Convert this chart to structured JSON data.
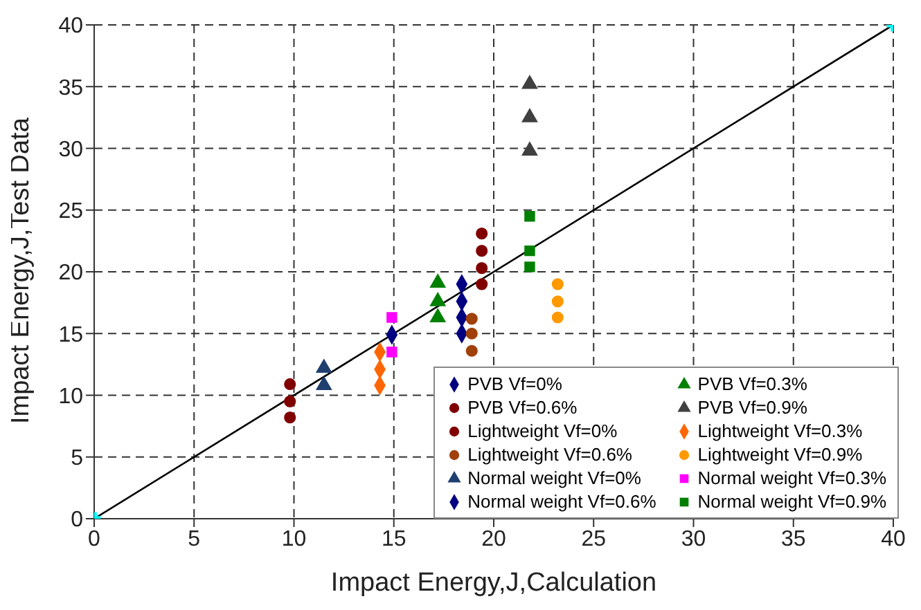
{
  "chart_data": {
    "type": "scatter",
    "xlabel": "Impact Energy,J,Calculation",
    "ylabel": "Impact Energy,J,Test Data",
    "xlim": [
      0,
      40
    ],
    "ylim": [
      0,
      40
    ],
    "xticks": [
      0,
      5,
      10,
      15,
      20,
      25,
      30,
      35,
      40
    ],
    "yticks": [
      0,
      5,
      10,
      15,
      20,
      25,
      30,
      35,
      40
    ],
    "grid": true,
    "legend": "bottom right",
    "series": [
      {
        "type": "line",
        "color": "#000000",
        "marker": "none",
        "x": [
          0,
          40
        ],
        "values": [
          0,
          40
        ]
      },
      {
        "color": "#00ffff",
        "marker": "cross",
        "x": [
          0,
          40
        ],
        "values": [
          0,
          40
        ]
      },
      {
        "name": "PVB Vf=0%",
        "color": "#000080",
        "marker": "diamond",
        "x": [
          18.4,
          18.4,
          18.4,
          18.4
        ],
        "values": [
          19.0,
          17.6,
          16.3,
          15.0
        ]
      },
      {
        "name": "PVB Vf=0.3%",
        "color": "#008000",
        "marker": "triangle",
        "x": [
          17.2,
          17.2,
          17.2
        ],
        "values": [
          19.1,
          17.6,
          16.3
        ]
      },
      {
        "name": "PVB Vf=0.6%",
        "color": "#800000",
        "marker": "circle",
        "x": [
          19.4,
          19.4,
          19.4,
          19.4
        ],
        "values": [
          23.1,
          21.7,
          20.3,
          19.0
        ]
      },
      {
        "name": "PVB Vf=0.9%",
        "color": "#404040",
        "marker": "triangle",
        "x": [
          21.8,
          21.8,
          21.8
        ],
        "values": [
          35.2,
          32.5,
          29.8
        ]
      },
      {
        "name": "Lightweight Vf=0%",
        "color": "#800000",
        "marker": "circle",
        "x": [
          9.8,
          9.8,
          9.8
        ],
        "values": [
          10.9,
          9.5,
          8.2
        ]
      },
      {
        "name": "Lightweight Vf=0.3%",
        "color": "#ff6600",
        "marker": "diamond",
        "x": [
          14.3,
          14.3,
          14.3
        ],
        "values": [
          13.5,
          12.1,
          10.8
        ]
      },
      {
        "name": "Lightweight Vf=0.6%",
        "color": "#a0400a",
        "marker": "circle",
        "x": [
          18.9,
          18.9,
          18.9
        ],
        "values": [
          16.2,
          15.0,
          13.6
        ]
      },
      {
        "name": "Lightweight Vf=0.9%",
        "color": "#ff9900",
        "marker": "circle",
        "x": [
          23.2,
          23.2,
          23.2
        ],
        "values": [
          19.0,
          17.6,
          16.3
        ]
      },
      {
        "name": "Normal weight Vf=0%",
        "color": "#1f3f6f",
        "marker": "triangle",
        "x": [
          11.5,
          11.5
        ],
        "values": [
          12.2,
          10.8
        ]
      },
      {
        "name": "Normal weight Vf=0.3%",
        "color": "#ff00ff",
        "marker": "square",
        "x": [
          14.9,
          14.9
        ],
        "values": [
          16.3,
          13.5
        ]
      },
      {
        "name": "Normal weight Vf=0.6%",
        "color": "#000080",
        "marker": "diamond",
        "x": [
          14.9
        ],
        "values": [
          14.9
        ]
      },
      {
        "name": "Normal weight Vf=0.9%",
        "color": "#008000",
        "marker": "square",
        "x": [
          21.8,
          21.8,
          21.8
        ],
        "values": [
          24.5,
          21.7,
          20.4
        ]
      }
    ]
  }
}
